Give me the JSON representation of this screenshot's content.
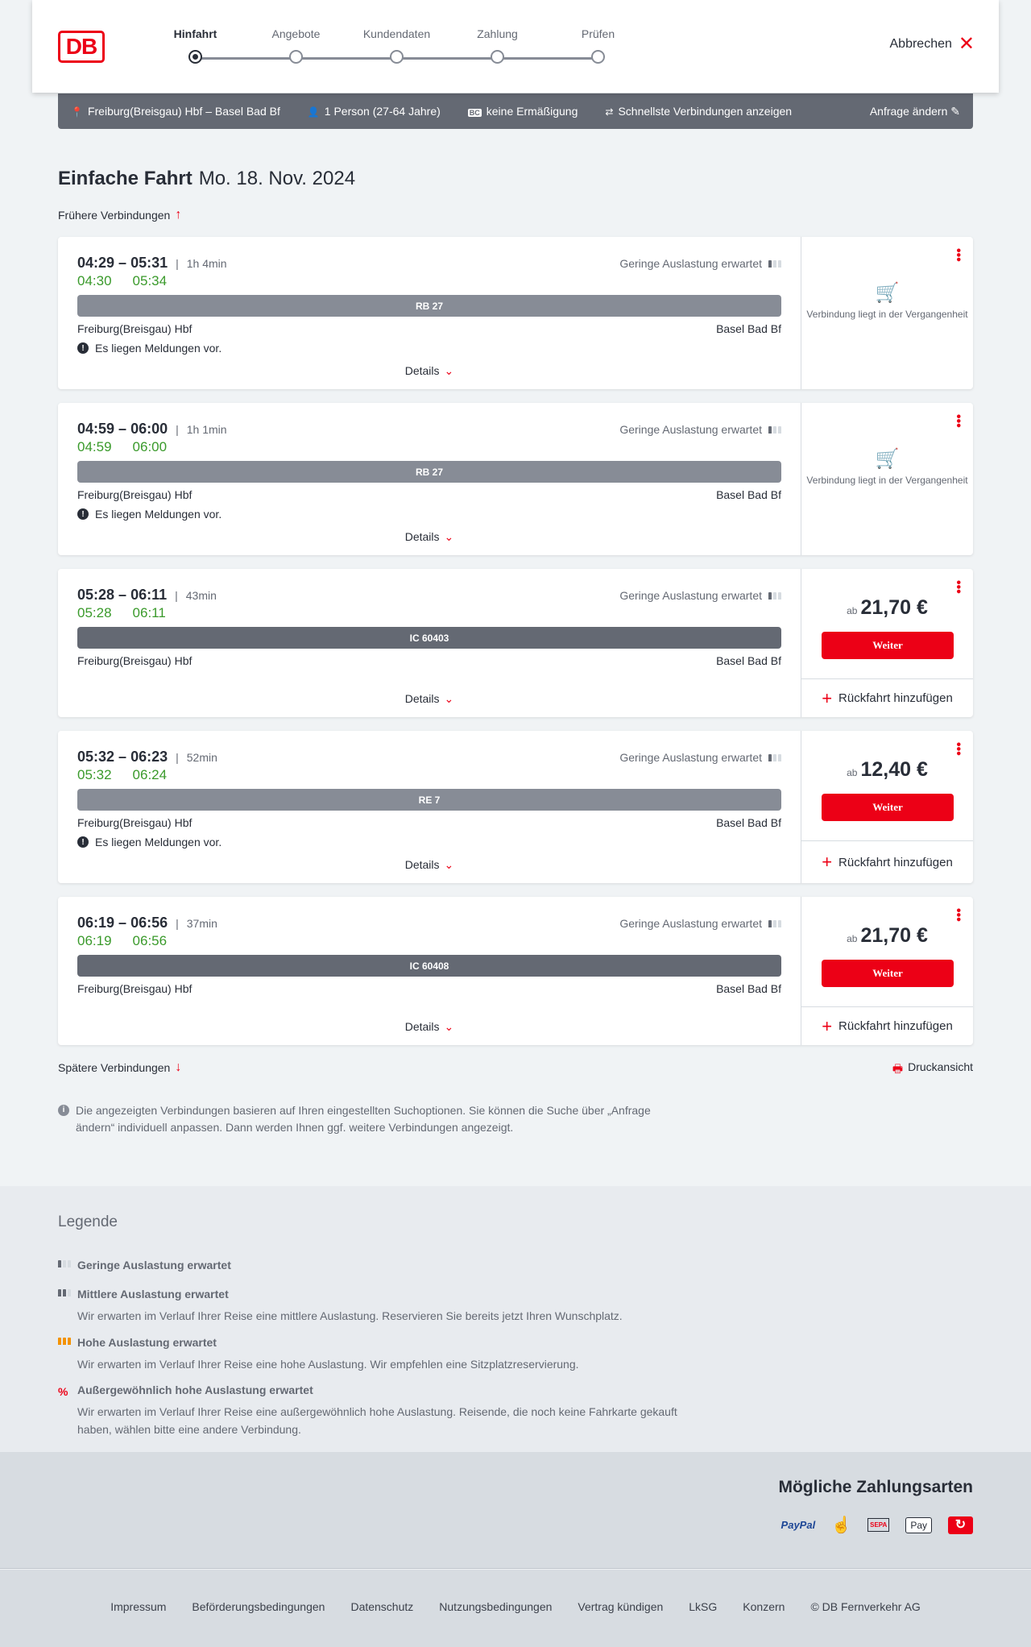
{
  "header": {
    "logo": "DB",
    "steps": [
      {
        "label": "Hinfahrt",
        "active": true
      },
      {
        "label": "Angebote"
      },
      {
        "label": "Kundendaten"
      },
      {
        "label": "Zahlung"
      },
      {
        "label": "Prüfen"
      }
    ],
    "cancel": "Abbrechen"
  },
  "summary": {
    "route": "Freiburg(Breisgau) Hbf – Basel Bad Bf",
    "persons": "1 Person (27-64 Jahre)",
    "discount_badge": "BC",
    "discount": "keine Ermäßigung",
    "fastest": "Schnellste Verbindungen anzeigen",
    "edit": "Anfrage ändern"
  },
  "title": {
    "trip": "Einfache Fahrt",
    "date": "Mo. 18. Nov. 2024"
  },
  "earlier": "Frühere Verbindungen",
  "later": "Spätere Verbindungen",
  "print": "Druckansicht",
  "connections": [
    {
      "dep": "04:29",
      "arr": "05:31",
      "duration": "1h 4min",
      "rt_dep": "04:30",
      "rt_arr": "05:34",
      "load": "Geringe Auslastung erwartet",
      "train": "RB 27",
      "from": "Freiburg(Breisgau) Hbf",
      "to": "Basel Bad Bf",
      "message": "Es liegen Meldungen vor.",
      "details": "Details",
      "past": "Verbindung liegt in der Vergangenheit"
    },
    {
      "dep": "04:59",
      "arr": "06:00",
      "duration": "1h 1min",
      "rt_dep": "04:59",
      "rt_arr": "06:00",
      "load": "Geringe Auslastung erwartet",
      "train": "RB 27",
      "from": "Freiburg(Breisgau) Hbf",
      "to": "Basel Bad Bf",
      "message": "Es liegen Meldungen vor.",
      "details": "Details",
      "past": "Verbindung liegt in der Vergangenheit"
    },
    {
      "dep": "05:28",
      "arr": "06:11",
      "duration": "43min",
      "rt_dep": "05:28",
      "rt_arr": "06:11",
      "load": "Geringe Auslastung erwartet",
      "train": "IC 60403",
      "from": "Freiburg(Breisgau) Hbf",
      "to": "Basel Bad Bf",
      "details": "Details",
      "price_prefix": "ab",
      "price": "21,70 €",
      "button": "Weiter",
      "return": "Rückfahrt hinzufügen"
    },
    {
      "dep": "05:32",
      "arr": "06:23",
      "duration": "52min",
      "rt_dep": "05:32",
      "rt_arr": "06:24",
      "load": "Geringe Auslastung erwartet",
      "train": "RE 7",
      "from": "Freiburg(Breisgau) Hbf",
      "to": "Basel Bad Bf",
      "message": "Es liegen Meldungen vor.",
      "details": "Details",
      "price_prefix": "ab",
      "price": "12,40 €",
      "button": "Weiter",
      "return": "Rückfahrt hinzufügen"
    },
    {
      "dep": "06:19",
      "arr": "06:56",
      "duration": "37min",
      "rt_dep": "06:19",
      "rt_arr": "06:56",
      "load": "Geringe Auslastung erwartet",
      "train": "IC 60408",
      "from": "Freiburg(Breisgau) Hbf",
      "to": "Basel Bad Bf",
      "details": "Details",
      "price_prefix": "ab",
      "price": "21,70 €",
      "button": "Weiter",
      "return": "Rückfahrt hinzufügen"
    }
  ],
  "info": "Die angezeigten Verbindungen basieren auf Ihren eingestellten Suchoptionen. Sie können die Suche über „Anfrage ändern“ individuell anpassen. Dann werden Ihnen ggf. weitere Verbindungen angezeigt.",
  "legend": {
    "title": "Legende",
    "items": [
      {
        "label": "Geringe Auslastung erwartet",
        "color": "#646973"
      },
      {
        "label": "Mittlere Auslastung erwartet",
        "text": "Wir erwarten im Verlauf Ihrer Reise eine mittlere Auslastung. Reservieren Sie bereits jetzt Ihren Wunschplatz.",
        "color": "#646973"
      },
      {
        "label": "Hohe Auslastung erwartet",
        "text": "Wir erwarten im Verlauf Ihrer Reise eine hohe Auslastung. Wir empfehlen eine Sitzplatzreservierung.",
        "color": "#f39200"
      },
      {
        "label": "Außergewöhnlich hohe Auslastung erwartet",
        "text": "Wir erwarten im Verlauf Ihrer Reise eine außergewöhnlich hohe Auslastung. Reisende, die noch keine Fahrkarte gekauft haben, wählen bitte eine andere Verbindung.",
        "color": "#ec0016"
      }
    ]
  },
  "payment": {
    "title": "Mögliche Zahlungsarten",
    "paypal": "PayPal",
    "sepa": "SEPA",
    "applepay": "Pay"
  },
  "footer": [
    "Impressum",
    "Beförderungsbedingungen",
    "Datenschutz",
    "Nutzungsbedingungen",
    "Vertrag kündigen",
    "LkSG",
    "Konzern",
    "© DB Fernverkehr AG"
  ]
}
